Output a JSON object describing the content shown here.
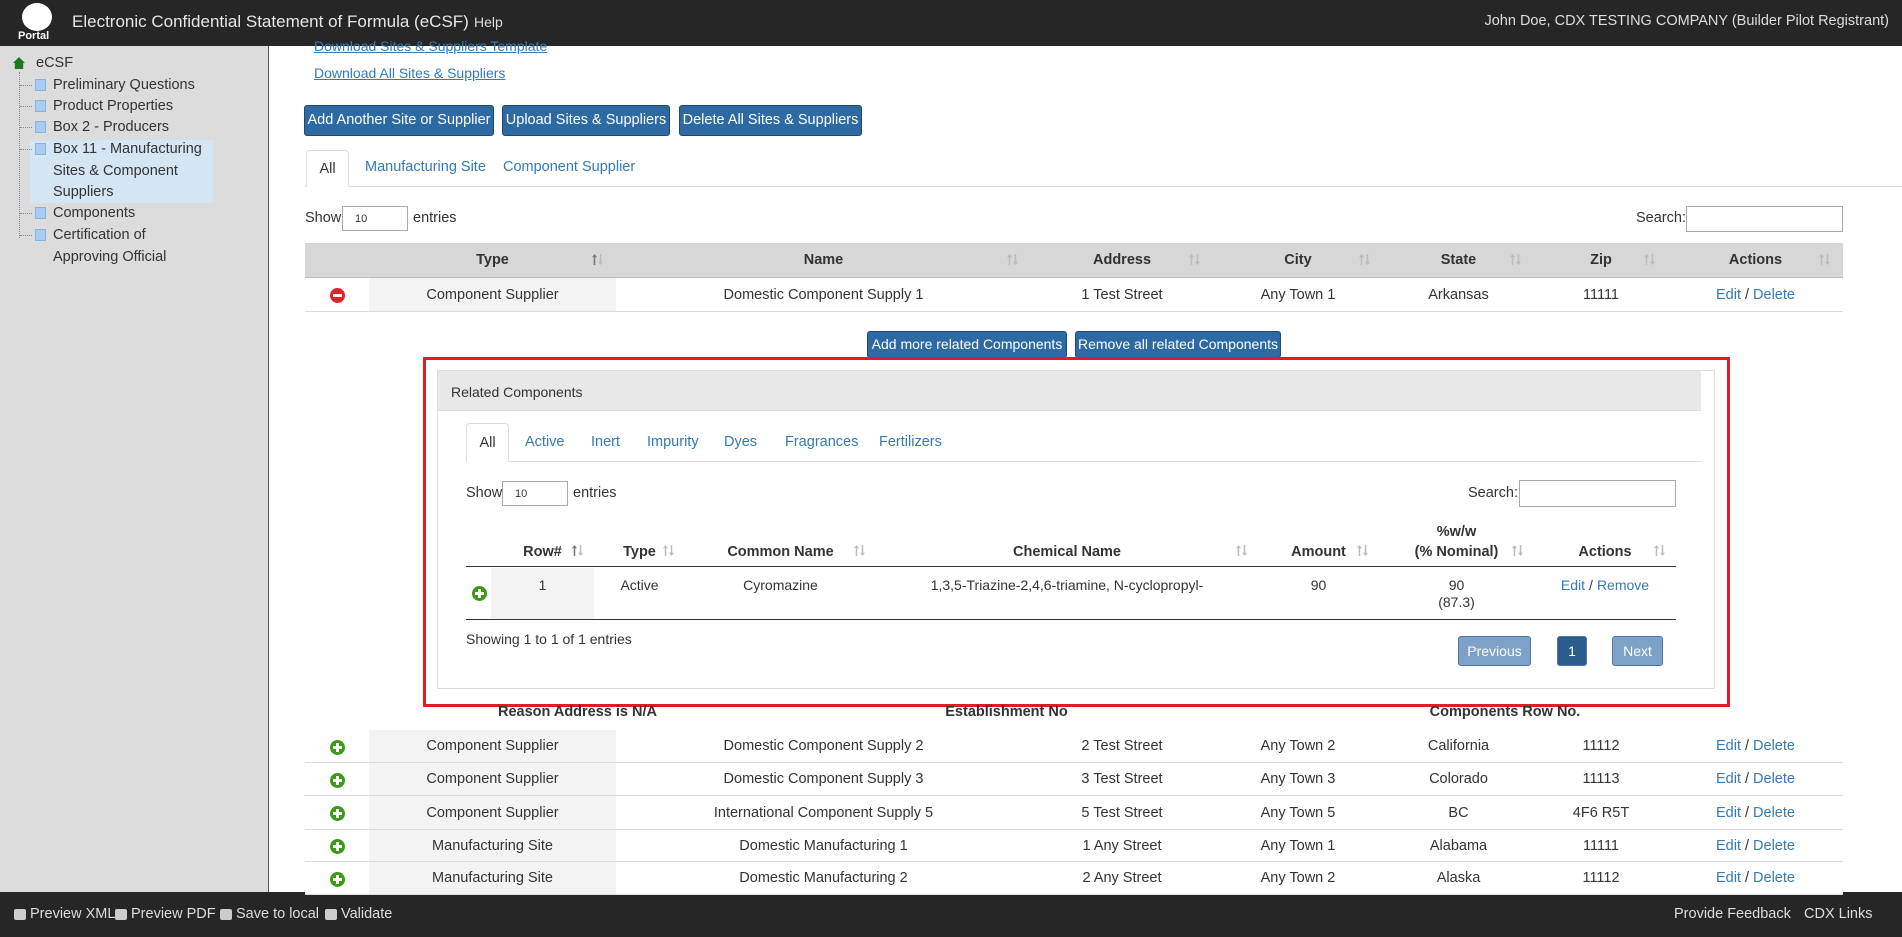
{
  "header": {
    "logo_label": "Portal",
    "title": "Electronic Confidential Statement of Formula (eCSF)",
    "help": "Help",
    "user": "John Doe, CDX TESTING COMPANY (Builder Pilot Registrant)"
  },
  "sidebar": {
    "root": "eCSF",
    "items": [
      "Preliminary Questions",
      "Product Properties",
      "Box 2 - Producers",
      "Box 11 - Manufacturing Sites & Component Suppliers",
      "Components",
      "Certification of Approving Official"
    ],
    "selected": 3
  },
  "links": [
    "Download Sites & Suppliers Template",
    "Download All Sites & Suppliers"
  ],
  "buttons": [
    "Add Another Site or Supplier",
    "Upload Sites & Suppliers",
    "Delete All Sites & Suppliers"
  ],
  "tabs": [
    "All",
    "Manufacturing Site",
    "Component Supplier"
  ],
  "show_label": "Show",
  "entries_label": "entries",
  "page_size": "10",
  "search_label": "Search:",
  "table": {
    "columns": [
      "Type",
      "Name",
      "Address",
      "City",
      "State",
      "Zip",
      "Actions"
    ],
    "rows": [
      [
        "Component Supplier",
        "Domestic Component Supply 1",
        "1 Test Street",
        "Any Town 1",
        "Arkansas",
        "11111"
      ],
      [
        "Component Supplier",
        "Domestic Component Supply 2",
        "2 Test Street",
        "Any Town 2",
        "California",
        "11112"
      ],
      [
        "Component Supplier",
        "Domestic Component Supply 3",
        "3 Test Street",
        "Any Town 3",
        "Colorado",
        "11113"
      ],
      [
        "Component Supplier",
        "International Component Supply 5",
        "5 Test Street",
        "Any Town 5",
        "BC",
        "4F6 R5T"
      ],
      [
        "Manufacturing Site",
        "Domestic Manufacturing 1",
        "1 Any Street",
        "Any Town 1",
        "Alabama",
        "11111"
      ],
      [
        "Manufacturing Site",
        "Domestic Manufacturing 2",
        "2 Any Street",
        "Any Town 2",
        "Alaska",
        "11112"
      ]
    ],
    "expanded_row": 0,
    "edit": "Edit",
    "separator": "/",
    "delete": "Delete",
    "child_labels": [
      "Reason Address is N/A",
      "Establishment No",
      "Components Row No."
    ]
  },
  "related": {
    "buttons": [
      "Add more related Components",
      "Remove all related Components"
    ],
    "title": "Related Components",
    "tabs": [
      "All",
      "Active",
      "Inert",
      "Impurity",
      "Dyes",
      "Fragrances",
      "Fertilizers"
    ],
    "columns": [
      [
        "Row#"
      ],
      [
        "Type"
      ],
      [
        "Common Name"
      ],
      [
        "Chemical Name"
      ],
      [
        "Amount"
      ],
      [
        "%w/w",
        "(% Nominal)"
      ],
      [
        "Actions"
      ]
    ],
    "rows": [
      [
        [
          "1"
        ],
        [
          "Active"
        ],
        [
          "Cyromazine"
        ],
        [
          "1,3,5-Triazine-2,4,6-triamine, N-cyclopropyl-"
        ],
        [
          "90"
        ],
        [
          "90",
          "(87.3)"
        ]
      ]
    ],
    "edit": "Edit",
    "separator": "/",
    "remove": "Remove",
    "info": "Showing 1 to 1 of 1 entries",
    "pagination": [
      "Previous",
      "1",
      "Next"
    ]
  },
  "footer": {
    "left": [
      "Preview XML",
      "Preview PDF",
      "Save to local",
      "Validate"
    ],
    "right": [
      "Provide Feedback",
      "CDX Links"
    ]
  }
}
